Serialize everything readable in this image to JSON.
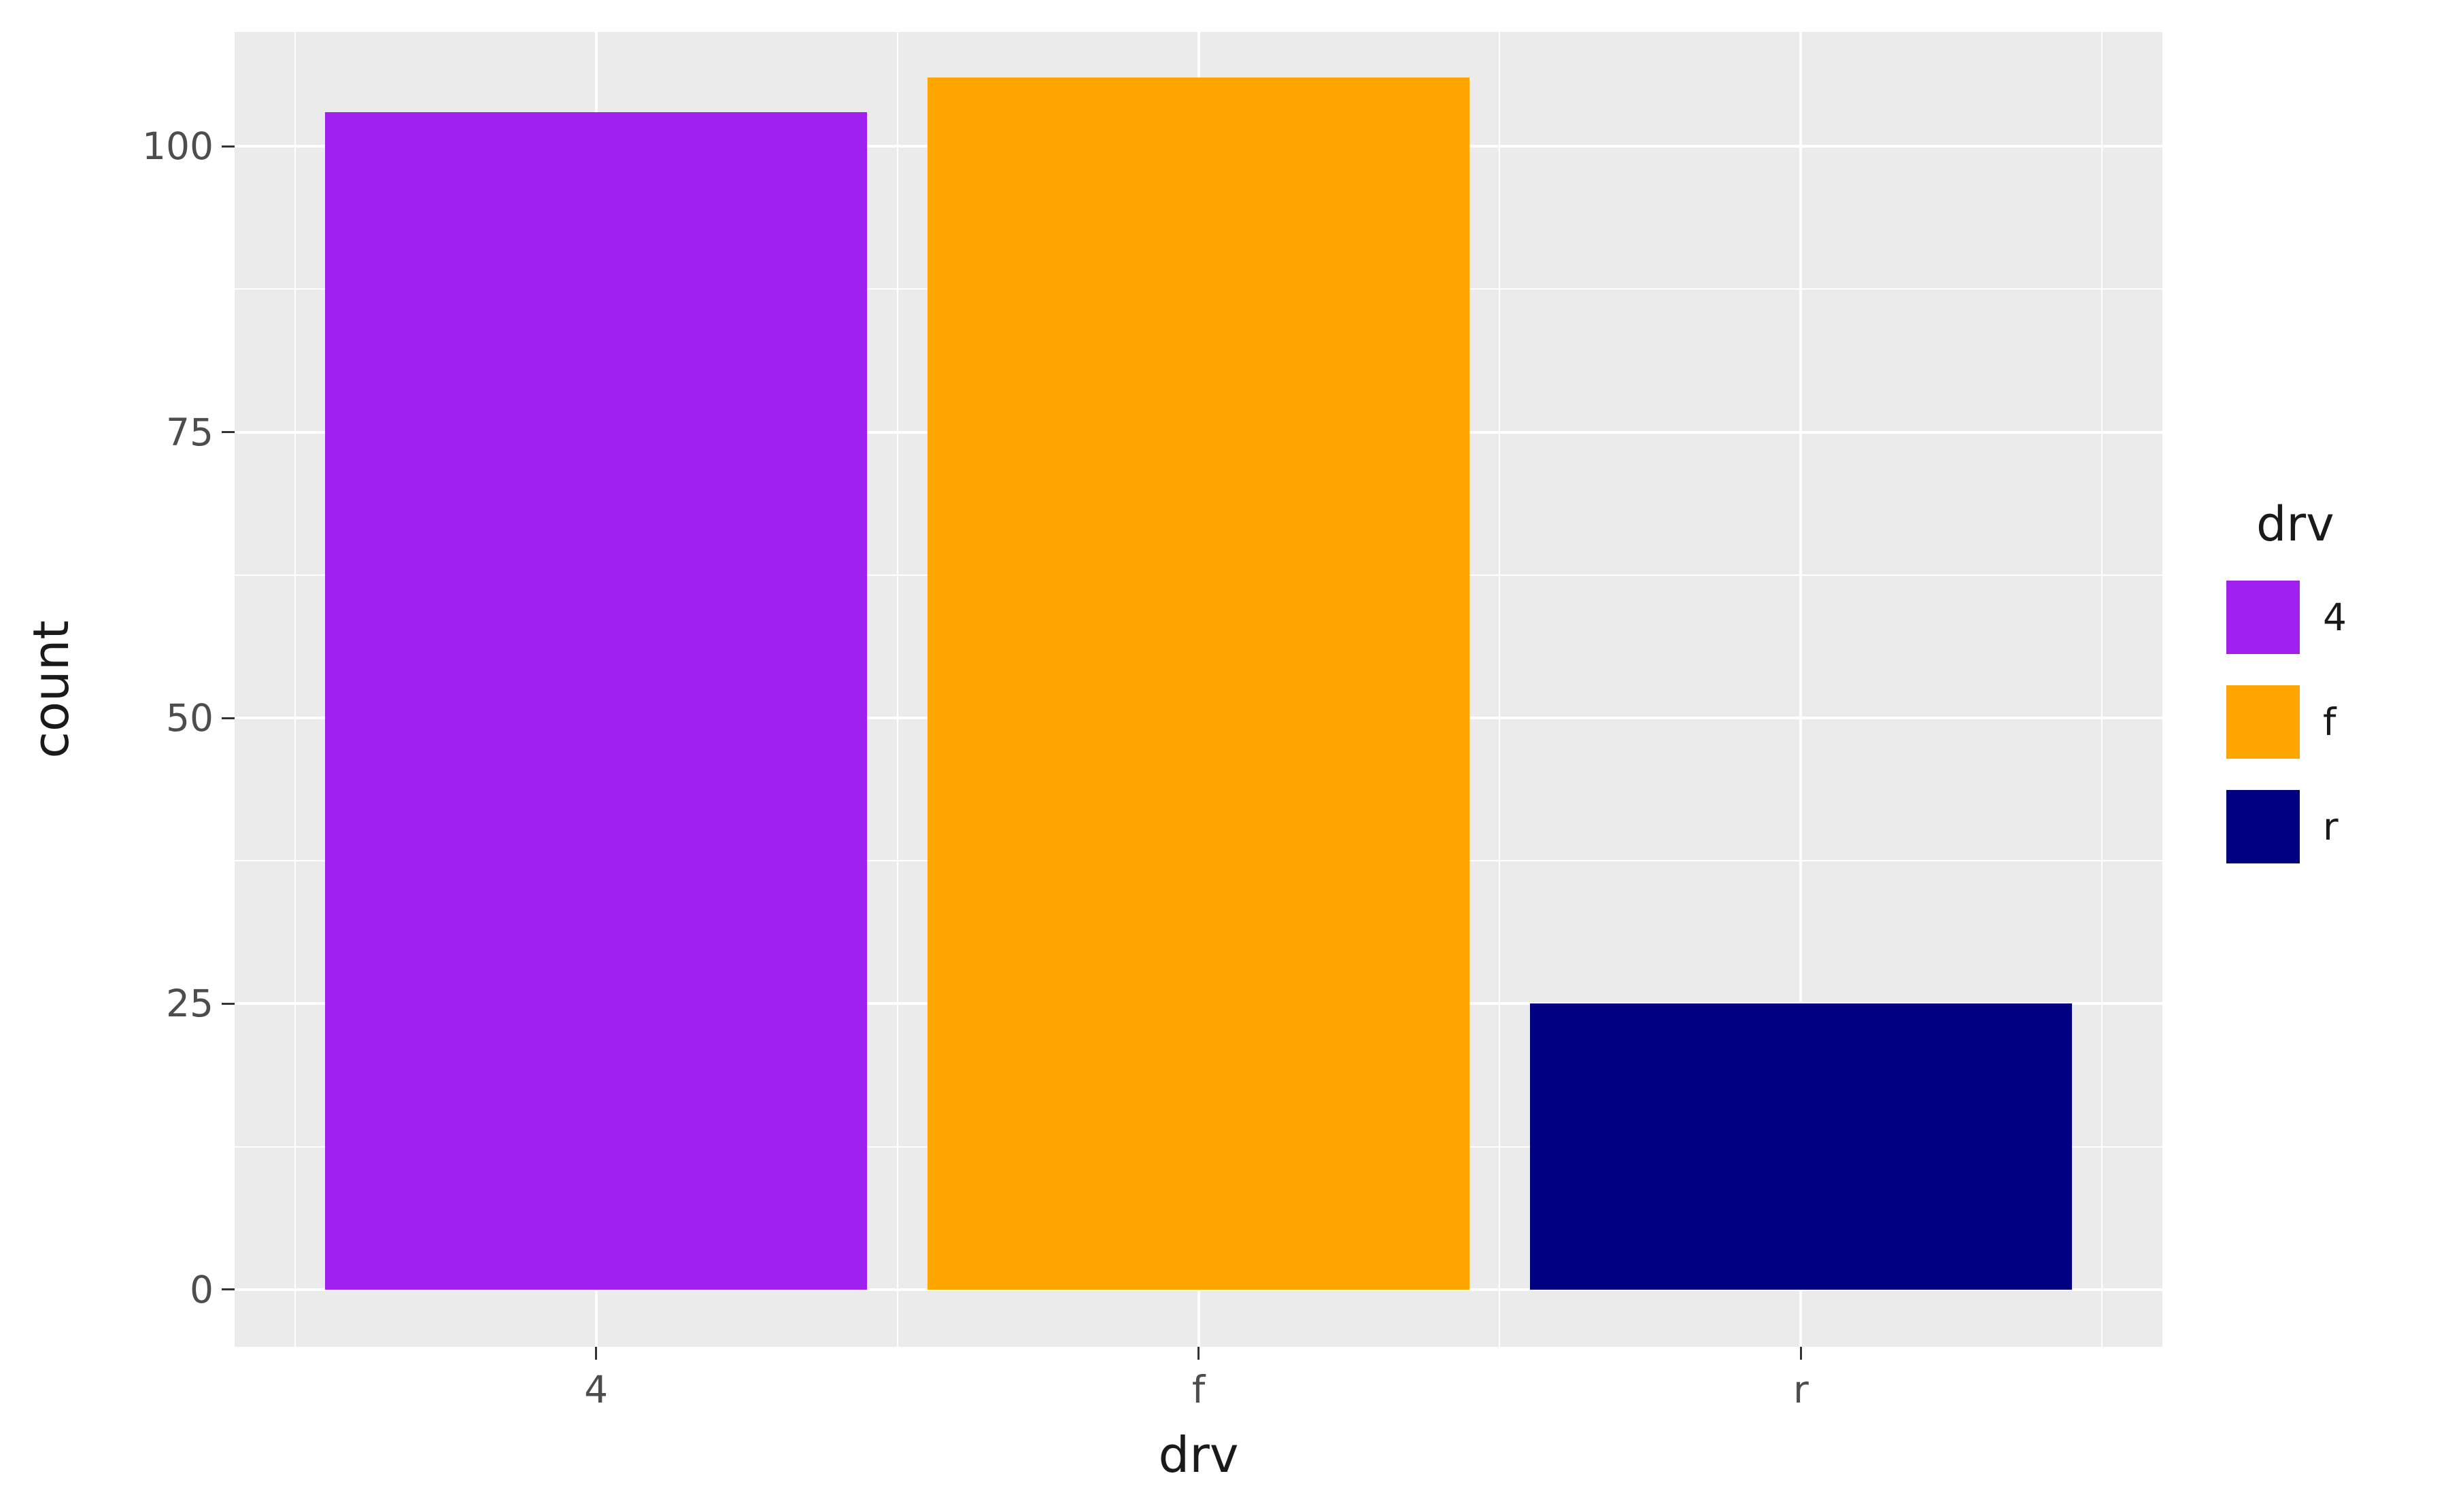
{
  "chart_data": {
    "type": "bar",
    "title": "",
    "xlabel": "drv",
    "ylabel": "count",
    "categories": [
      "4",
      "f",
      "r"
    ],
    "values": [
      103,
      106,
      25
    ],
    "bar_colors": [
      "#A020F0",
      "#FFA500",
      "#000080"
    ],
    "ylim": [
      -5,
      110
    ],
    "y_major_ticks": [
      0,
      25,
      50,
      75,
      100
    ],
    "y_tick_labels": [
      "0",
      "25",
      "50",
      "75",
      "100"
    ],
    "y_minor_ticks": [
      12.5,
      37.5,
      62.5,
      87.5
    ],
    "grid": true,
    "panel_background": "#EBEBEB",
    "grid_color": "#FFFFFF",
    "tick_label_color": "#4D4D4D",
    "axis_title_color": "#1a1a1a",
    "legend": {
      "title": "drv",
      "position": "right",
      "entries": [
        {
          "label": "4",
          "color": "#A020F0"
        },
        {
          "label": "f",
          "color": "#FFA500"
        },
        {
          "label": "r",
          "color": "#000080"
        }
      ]
    }
  }
}
